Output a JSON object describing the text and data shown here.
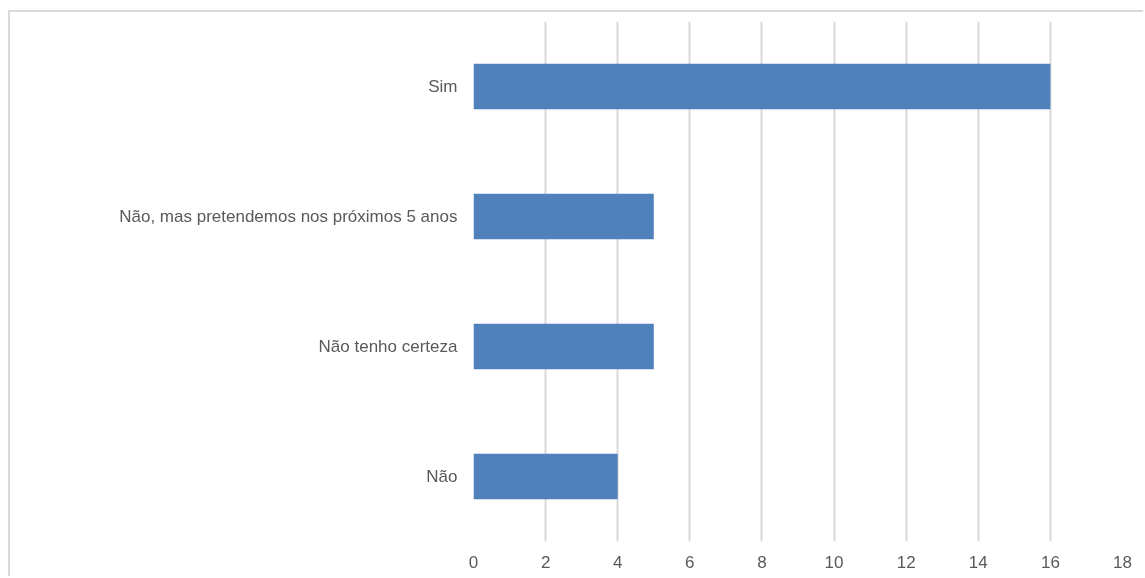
{
  "chart_data": {
    "type": "bar",
    "orientation": "horizontal",
    "categories": [
      "Sim",
      "Não, mas pretendemos nos próximos 5 anos",
      "Não tenho certeza",
      "Não"
    ],
    "values": [
      16,
      5,
      5,
      4
    ],
    "color": "#4f81bd",
    "xlim": [
      0,
      18
    ],
    "xticks": [
      0,
      2,
      4,
      6,
      8,
      10,
      12,
      14,
      16,
      18
    ],
    "grid": "x"
  }
}
